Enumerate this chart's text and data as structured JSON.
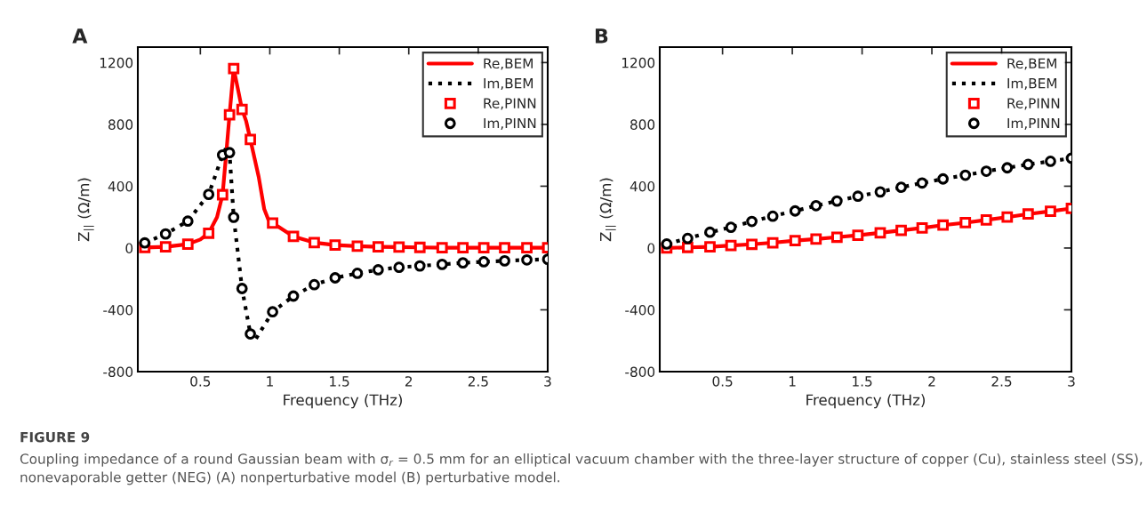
{
  "chart_data": [
    {
      "type": "line",
      "xlabel": "Frequency (THz)",
      "ylabel": "Z$_{||}$ (Ω/m)",
      "xlim": [
        0.05,
        3
      ],
      "ylim": [
        -800,
        1300
      ],
      "xticks": [
        0.5,
        1,
        1.5,
        2,
        2.5,
        3
      ],
      "yticks": [
        -800,
        -400,
        0,
        400,
        800,
        1200
      ],
      "legend": "top right",
      "grid": false,
      "annotations": [
        "A",
        "FIGURE 9",
        "Coupling impedance of a round Gaussian beam with σ$_{r}$ = 0.5 mm for an elliptical vacuum chamber with the three-layer structure of copper (Cu), stainless steel (SS), nonevaporable getter (NEG) (A) nonperturbative model (B) perturbative model."
      ],
      "series": [
        {
          "name": "Re,BEM",
          "type": "line",
          "color": "#ff0000",
          "line_style": "solid",
          "marker": "none",
          "x": [
            0.1,
            0.25,
            0.41,
            0.5,
            0.56,
            0.62,
            0.66,
            0.69,
            0.71,
            0.74,
            0.77,
            0.8,
            0.83,
            0.86,
            0.92,
            0.96,
            0.99,
            1.02,
            1.17,
            1.32,
            1.47,
            1.63,
            1.78,
            1.93,
            2.08,
            2.24,
            2.39,
            2.54,
            2.69,
            2.85,
            3.0
          ],
          "values": [
            3,
            8,
            25,
            55,
            96,
            200,
            345,
            650,
            862,
            1161,
            1030,
            897,
            820,
            702,
            460,
            251,
            183,
            162,
            75,
            35,
            19,
            12,
            8,
            6,
            4,
            2,
            2,
            2,
            2,
            2,
            2
          ]
        },
        {
          "name": "Im,BEM",
          "type": "line",
          "color": "#000000",
          "line_style": "dotted",
          "marker": "none",
          "x": [
            0.1,
            0.25,
            0.41,
            0.56,
            0.66,
            0.69,
            0.71,
            0.74,
            0.8,
            0.86,
            0.89,
            1.02,
            1.17,
            1.32,
            1.47,
            1.63,
            1.78,
            1.93,
            2.08,
            2.24,
            2.39,
            2.54,
            2.69,
            2.85,
            3.0
          ],
          "values": [
            33,
            91,
            174,
            347,
            602,
            656,
            617,
            199,
            -262,
            -556,
            -602,
            -413,
            -311,
            -237,
            -193,
            -164,
            -141,
            -125,
            -116,
            -106,
            -96,
            -89,
            -83,
            -77,
            -73
          ]
        },
        {
          "name": "Re,PINN",
          "type": "scatter",
          "color": "#ff0000",
          "marker": "square",
          "x": [
            0.1,
            0.25,
            0.41,
            0.56,
            0.66,
            0.71,
            0.74,
            0.8,
            0.86,
            1.02,
            1.17,
            1.32,
            1.47,
            1.63,
            1.78,
            1.93,
            2.08,
            2.24,
            2.39,
            2.54,
            2.69,
            2.85,
            3.0
          ],
          "values": [
            3,
            8,
            25,
            96,
            345,
            862,
            1161,
            897,
            702,
            162,
            75,
            35,
            19,
            12,
            8,
            6,
            4,
            2,
            2,
            2,
            2,
            2,
            2
          ]
        },
        {
          "name": "Im,PINN",
          "type": "scatter",
          "color": "#000000",
          "marker": "circle",
          "x": [
            0.1,
            0.25,
            0.41,
            0.56,
            0.66,
            0.71,
            0.74,
            0.8,
            0.86,
            1.02,
            1.17,
            1.32,
            1.47,
            1.63,
            1.78,
            1.93,
            2.08,
            2.24,
            2.39,
            2.54,
            2.69,
            2.85,
            3.0
          ],
          "values": [
            33,
            91,
            174,
            347,
            602,
            617,
            199,
            -262,
            -556,
            -413,
            -311,
            -237,
            -193,
            -164,
            -141,
            -125,
            -116,
            -106,
            -96,
            -89,
            -83,
            -77,
            -73
          ]
        }
      ]
    },
    {
      "type": "line",
      "xlabel": "Frequency (THz)",
      "ylabel": "Z$_{||}$ (Ω/m)",
      "xlim": [
        0.05,
        3
      ],
      "ylim": [
        -800,
        1300
      ],
      "xticks": [
        0.5,
        1,
        1.5,
        2,
        2.5,
        3
      ],
      "yticks": [
        -800,
        -400,
        0,
        400,
        800,
        1200
      ],
      "legend": "top right",
      "grid": false,
      "annotations": [
        "B"
      ],
      "series": [
        {
          "name": "Re,BEM",
          "type": "line",
          "color": "#ff0000",
          "line_style": "solid",
          "marker": "none",
          "x": [
            0.1,
            0.25,
            0.41,
            0.56,
            0.71,
            0.86,
            1.02,
            1.17,
            1.32,
            1.47,
            1.63,
            1.78,
            1.93,
            2.08,
            2.24,
            2.39,
            2.54,
            2.69,
            2.85,
            3.0
          ],
          "values": [
            0,
            4,
            8,
            16,
            24,
            34,
            48,
            58,
            70,
            82,
            98,
            114,
            130,
            148,
            164,
            182,
            200,
            220,
            238,
            256
          ]
        },
        {
          "name": "Im,BEM",
          "type": "line",
          "color": "#000000",
          "line_style": "dotted",
          "marker": "none",
          "x": [
            0.1,
            0.25,
            0.41,
            0.56,
            0.71,
            0.86,
            1.02,
            1.17,
            1.32,
            1.47,
            1.63,
            1.78,
            1.93,
            2.08,
            2.24,
            2.39,
            2.54,
            2.69,
            2.85,
            3.0
          ],
          "values": [
            26,
            62,
            102,
            134,
            172,
            206,
            240,
            274,
            304,
            335,
            363,
            393,
            421,
            447,
            471,
            497,
            519,
            541,
            561,
            581
          ]
        },
        {
          "name": "Re,PINN",
          "type": "scatter",
          "color": "#ff0000",
          "marker": "square",
          "x": [
            0.1,
            0.25,
            0.41,
            0.56,
            0.71,
            0.86,
            1.02,
            1.17,
            1.32,
            1.47,
            1.63,
            1.78,
            1.93,
            2.08,
            2.24,
            2.39,
            2.54,
            2.69,
            2.85,
            3.0
          ],
          "values": [
            0,
            4,
            8,
            16,
            24,
            34,
            48,
            58,
            70,
            82,
            98,
            114,
            130,
            148,
            164,
            182,
            200,
            220,
            238,
            256
          ]
        },
        {
          "name": "Im,PINN",
          "type": "scatter",
          "color": "#000000",
          "marker": "circle",
          "x": [
            0.1,
            0.25,
            0.41,
            0.56,
            0.71,
            0.86,
            1.02,
            1.17,
            1.32,
            1.47,
            1.63,
            1.78,
            1.93,
            2.08,
            2.24,
            2.39,
            2.54,
            2.69,
            2.85,
            3.0
          ],
          "values": [
            26,
            62,
            102,
            134,
            172,
            206,
            240,
            274,
            304,
            335,
            363,
            393,
            421,
            447,
            471,
            497,
            519,
            541,
            561,
            581
          ]
        }
      ]
    }
  ]
}
